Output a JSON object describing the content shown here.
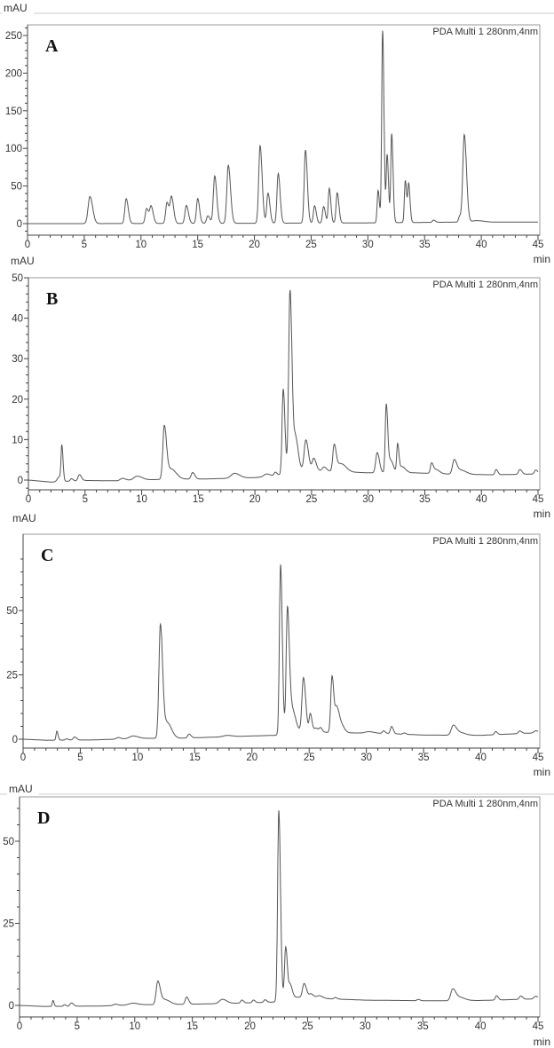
{
  "chart_data": [
    {
      "type": "line",
      "panel_label": "A",
      "legend": "PDA Multi 1 280nm,4nm",
      "ylabel": "mAU",
      "xlabel": "min",
      "xlim": [
        0,
        45
      ],
      "ylim": [
        -15,
        270
      ],
      "xticks": [
        0,
        5,
        10,
        15,
        20,
        25,
        30,
        35,
        40,
        45
      ],
      "yticks": [
        0,
        50,
        100,
        150,
        200,
        250
      ],
      "grid": false,
      "baseline": [
        [
          0,
          0
        ],
        [
          5,
          0
        ],
        [
          20,
          0.5
        ],
        [
          30,
          1
        ],
        [
          38,
          2
        ],
        [
          45,
          2
        ]
      ],
      "peaks": [
        [
          5.5,
          36,
          0.16
        ],
        [
          8.7,
          33,
          0.12
        ],
        [
          10.5,
          20,
          0.12
        ],
        [
          10.9,
          22,
          0.12
        ],
        [
          12.3,
          28,
          0.12
        ],
        [
          12.7,
          34,
          0.12
        ],
        [
          14.0,
          24,
          0.12
        ],
        [
          15.0,
          33,
          0.11
        ],
        [
          15.9,
          10,
          0.12
        ],
        [
          16.5,
          63,
          0.12
        ],
        [
          17.7,
          77,
          0.13
        ],
        [
          20.5,
          103,
          0.12
        ],
        [
          21.2,
          40,
          0.11
        ],
        [
          22.1,
          66,
          0.11
        ],
        [
          24.5,
          97,
          0.11
        ],
        [
          25.3,
          23,
          0.1
        ],
        [
          26.1,
          22,
          0.1
        ],
        [
          26.6,
          46,
          0.09
        ],
        [
          27.3,
          40,
          0.1
        ],
        [
          30.9,
          43,
          0.08
        ],
        [
          31.3,
          255,
          0.08
        ],
        [
          31.7,
          90,
          0.08
        ],
        [
          32.1,
          118,
          0.08
        ],
        [
          33.3,
          56,
          0.08
        ],
        [
          33.6,
          50,
          0.08
        ],
        [
          35.8,
          3,
          0.1
        ],
        [
          38.1,
          8,
          0.1
        ],
        [
          38.5,
          116,
          0.13
        ],
        [
          39.6,
          2,
          0.4
        ]
      ]
    },
    {
      "type": "line",
      "panel_label": "B",
      "legend": "PDA Multi 1 280nm,4nm",
      "ylabel": "mAU",
      "xlabel": "min",
      "xlim": [
        0,
        45
      ],
      "ylim": [
        -3,
        50
      ],
      "xticks": [
        0,
        5,
        10,
        15,
        20,
        25,
        30,
        35,
        40,
        45
      ],
      "yticks": [
        0,
        10,
        20,
        30,
        40,
        50
      ],
      "grid": false,
      "baseline": [
        [
          0,
          0
        ],
        [
          2,
          -0.5
        ],
        [
          5,
          -0.1
        ],
        [
          8,
          -0.2
        ],
        [
          12,
          0.2
        ],
        [
          16,
          0.3
        ],
        [
          20,
          0.6
        ],
        [
          22,
          1.2
        ],
        [
          24,
          2.5
        ],
        [
          28,
          2
        ],
        [
          30,
          1.8
        ],
        [
          34,
          1.8
        ],
        [
          37,
          1.5
        ],
        [
          41,
          1.3
        ],
        [
          45,
          1.5
        ]
      ],
      "peaks": [
        [
          2.7,
          1.2,
          0.15
        ],
        [
          2.95,
          8.5,
          0.07
        ],
        [
          3.8,
          0.6,
          0.1
        ],
        [
          4.5,
          1.5,
          0.12
        ],
        [
          8.3,
          0.6,
          0.2
        ],
        [
          9.6,
          1,
          0.3
        ],
        [
          12.0,
          13,
          0.13
        ],
        [
          12.6,
          2.5,
          0.3
        ],
        [
          14.5,
          1.6,
          0.13
        ],
        [
          18.2,
          1.2,
          0.3
        ],
        [
          21.0,
          0.6,
          0.2
        ],
        [
          21.8,
          0.8,
          0.1
        ],
        [
          22.5,
          21,
          0.1
        ],
        [
          23.1,
          45,
          0.12
        ],
        [
          23.6,
          8,
          0.15
        ],
        [
          24.5,
          7.5,
          0.15
        ],
        [
          25.2,
          3,
          0.14
        ],
        [
          26.1,
          1,
          0.15
        ],
        [
          27.0,
          6.5,
          0.12
        ],
        [
          27.6,
          2,
          0.3
        ],
        [
          30.8,
          5,
          0.13
        ],
        [
          31.6,
          17,
          0.09
        ],
        [
          32.0,
          3,
          0.15
        ],
        [
          32.6,
          7,
          0.08
        ],
        [
          33.0,
          1.5,
          0.2
        ],
        [
          35.6,
          2.5,
          0.1
        ],
        [
          36.0,
          1,
          0.2
        ],
        [
          37.6,
          3.5,
          0.15
        ],
        [
          38.2,
          1,
          0.3
        ],
        [
          41.3,
          1.3,
          0.1
        ],
        [
          43.4,
          1.2,
          0.12
        ],
        [
          44.8,
          1,
          0.12
        ]
      ]
    },
    {
      "type": "line",
      "panel_label": "C",
      "legend": "PDA Multi 1 280nm,4nm",
      "ylabel": "mAU",
      "xlabel": "min",
      "xlim": [
        0,
        45
      ],
      "ylim": [
        -7,
        70
      ],
      "xticks": [
        0,
        5,
        10,
        15,
        20,
        25,
        30,
        35,
        40,
        45
      ],
      "yticks": [
        0,
        25,
        50
      ],
      "grid": false,
      "baseline": [
        [
          0,
          0
        ],
        [
          2,
          -0.4
        ],
        [
          6,
          -0.3
        ],
        [
          10,
          0.3
        ],
        [
          14,
          0.4
        ],
        [
          18,
          1
        ],
        [
          22,
          1.5
        ],
        [
          24,
          3
        ],
        [
          28,
          2.5
        ],
        [
          32,
          2.2
        ],
        [
          35,
          1.6
        ],
        [
          40,
          1.5
        ],
        [
          45,
          2.5
        ]
      ],
      "peaks": [
        [
          2.95,
          3.5,
          0.07
        ],
        [
          3.8,
          0.5,
          0.1
        ],
        [
          4.5,
          1.2,
          0.12
        ],
        [
          8.3,
          0.6,
          0.15
        ],
        [
          9.6,
          1,
          0.3
        ],
        [
          12.0,
          44,
          0.13
        ],
        [
          12.6,
          6,
          0.25
        ],
        [
          14.5,
          1.5,
          0.12
        ],
        [
          17.8,
          0.5,
          0.3
        ],
        [
          22.5,
          66,
          0.1
        ],
        [
          23.1,
          48,
          0.11
        ],
        [
          23.5,
          9,
          0.2
        ],
        [
          24.5,
          21,
          0.13
        ],
        [
          25.1,
          7,
          0.1
        ],
        [
          25.6,
          1.5,
          0.15
        ],
        [
          26.0,
          1.5,
          0.1
        ],
        [
          27.0,
          22,
          0.11
        ],
        [
          27.4,
          8,
          0.12
        ],
        [
          27.7,
          4,
          0.2
        ],
        [
          30.2,
          0.6,
          0.3
        ],
        [
          31.5,
          1,
          0.1
        ],
        [
          32.2,
          2.8,
          0.1
        ],
        [
          33.3,
          0.5,
          0.1
        ],
        [
          37.6,
          3.8,
          0.18
        ],
        [
          38.2,
          1,
          0.3
        ],
        [
          41.3,
          1.2,
          0.1
        ],
        [
          43.4,
          1,
          0.12
        ],
        [
          44.8,
          0.8,
          0.15
        ]
      ]
    },
    {
      "type": "line",
      "panel_label": "D",
      "legend": "PDA Multi 1 280nm,4nm",
      "ylabel": "mAU",
      "xlabel": "min",
      "xlim": [
        0,
        45
      ],
      "ylim": [
        -4,
        64
      ],
      "xticks": [
        0,
        5,
        10,
        15,
        20,
        25,
        30,
        35,
        40,
        45
      ],
      "yticks": [
        0,
        25,
        50
      ],
      "grid": false,
      "baseline": [
        [
          0,
          0
        ],
        [
          2,
          -0.3
        ],
        [
          7,
          -0.2
        ],
        [
          10,
          0.2
        ],
        [
          14,
          0.3
        ],
        [
          18,
          0.6
        ],
        [
          22,
          1
        ],
        [
          24,
          2.5
        ],
        [
          27,
          2
        ],
        [
          30,
          1.6
        ],
        [
          36,
          1.4
        ],
        [
          40,
          1.5
        ],
        [
          45,
          2
        ]
      ],
      "peaks": [
        [
          2.9,
          1.8,
          0.06
        ],
        [
          3.9,
          0.5,
          0.08
        ],
        [
          4.5,
          1,
          0.12
        ],
        [
          8.3,
          0.4,
          0.15
        ],
        [
          9.8,
          0.5,
          0.3
        ],
        [
          12.0,
          7,
          0.14
        ],
        [
          12.6,
          1.5,
          0.3
        ],
        [
          14.5,
          2.2,
          0.12
        ],
        [
          17.6,
          1.3,
          0.25
        ],
        [
          19.3,
          0.9,
          0.1
        ],
        [
          20.3,
          0.8,
          0.1
        ],
        [
          21.3,
          0.8,
          0.1
        ],
        [
          22.5,
          58,
          0.1
        ],
        [
          23.1,
          16,
          0.1
        ],
        [
          23.5,
          4,
          0.12
        ],
        [
          24.7,
          4.3,
          0.14
        ],
        [
          25.3,
          1.2,
          0.15
        ],
        [
          26.0,
          0.8,
          0.2
        ],
        [
          27.4,
          0.5,
          0.1
        ],
        [
          34.6,
          0.4,
          0.1
        ],
        [
          37.6,
          3.5,
          0.17
        ],
        [
          38.2,
          1,
          0.3
        ],
        [
          41.4,
          1.3,
          0.1
        ],
        [
          43.5,
          1,
          0.12
        ],
        [
          44.8,
          0.8,
          0.15
        ]
      ]
    }
  ],
  "colors": {
    "trace": "#555555",
    "axis": "#444444",
    "frame": "#888888"
  }
}
